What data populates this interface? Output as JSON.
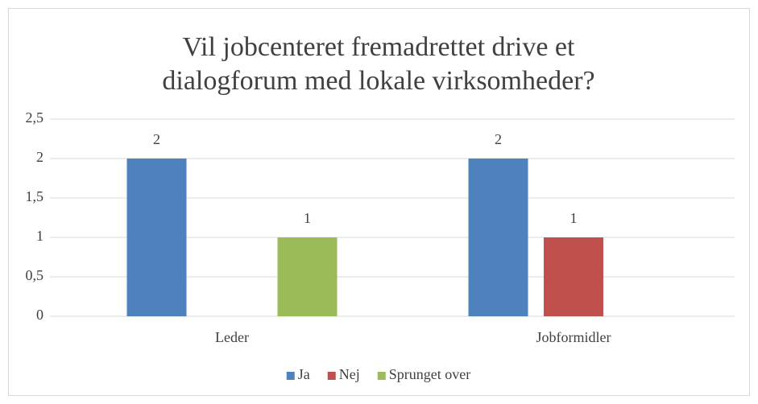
{
  "chart_data": {
    "type": "bar",
    "title": "Vil jobcenteret fremadrettet drive et dialogforum med lokale virksomheder?",
    "categories": [
      "Leder",
      "Jobformidler"
    ],
    "series": [
      {
        "name": "Ja",
        "color": "#4f81bd",
        "values": [
          2,
          2
        ]
      },
      {
        "name": "Nej",
        "color": "#c0504d",
        "values": [
          null,
          1
        ]
      },
      {
        "name": "Sprunget over",
        "color": "#9bbb59",
        "values": [
          1,
          null
        ]
      }
    ],
    "ylim": [
      0,
      2.5
    ],
    "yticks": [
      0,
      {
        "value": 0.5,
        "label": "0,5"
      },
      1,
      {
        "value": 1.5,
        "label": "1,5"
      },
      2,
      {
        "value": 2.5,
        "label": "2,5"
      }
    ],
    "grid": true,
    "legend": "bottom"
  }
}
